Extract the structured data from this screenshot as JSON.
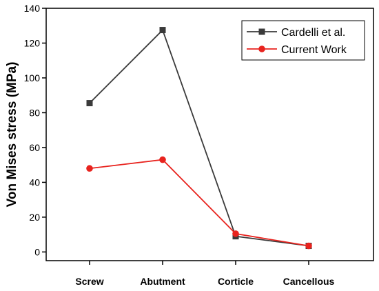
{
  "chart_data": {
    "type": "line",
    "categories": [
      "Screw",
      "Abutment",
      "Corticle",
      "Cancellous"
    ],
    "ylabel": "Von Mises stress (MPa)",
    "xlabel": "",
    "ylim": [
      -5,
      140
    ],
    "yticks": [
      0,
      20,
      40,
      60,
      80,
      100,
      120,
      140
    ],
    "legend_position": "top-right",
    "series": [
      {
        "name": "Cardelli et al.",
        "color": "#3a3a3a",
        "marker": "square",
        "values": [
          85.5,
          127.5,
          9,
          3.5
        ]
      },
      {
        "name": "Current Work",
        "color": "#e8231e",
        "marker": "circle",
        "values": [
          48,
          53,
          10.5,
          3.5
        ]
      }
    ]
  }
}
